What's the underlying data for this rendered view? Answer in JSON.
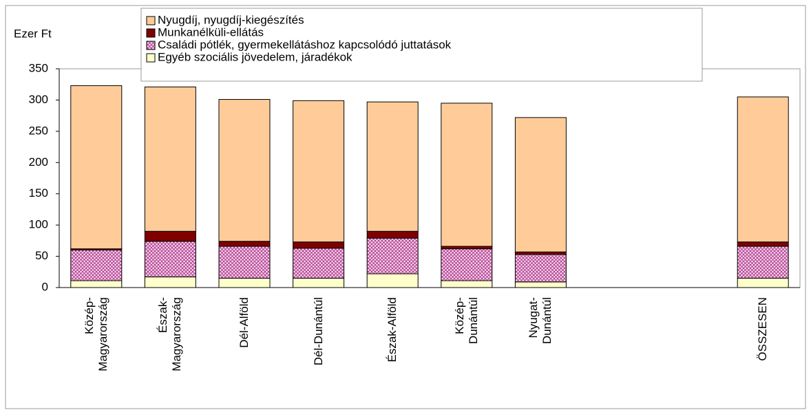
{
  "chart_data": {
    "type": "stacked_bar",
    "y_label": "Ezer Ft",
    "categories": [
      "Közép-\nMagyarország",
      "Észak-\nMagyarország",
      "Dél-Alföld",
      "Dél-Dunántúl",
      "Észak-Alföld",
      "Közép-\nDunántúl",
      "Nyugat-\nDunántúl",
      null,
      null,
      "ÖSSZESEN"
    ],
    "series": [
      {
        "name": "Egyéb szociális jövedelem, járadékok",
        "color": "#ffffcc",
        "values": [
          11,
          17,
          15,
          15,
          22,
          11,
          9,
          null,
          null,
          15
        ]
      },
      {
        "name": "Családi pótlék, gyermekellátáshoz kapcsolódó juttatások",
        "color": "#ffccff",
        "pattern": "crosshatch",
        "values": [
          49,
          57,
          51,
          48,
          57,
          51,
          44,
          null,
          null,
          51
        ]
      },
      {
        "name": "Munkanélküli-ellátás",
        "color": "#800000",
        "values": [
          2,
          16,
          8,
          10,
          11,
          4,
          4,
          null,
          null,
          7
        ]
      },
      {
        "name": "Nyugdíj, nyugdíj-kiegészítés",
        "color": "#ffcc99",
        "values": [
          261,
          231,
          227,
          226,
          207,
          229,
          215,
          null,
          null,
          232
        ]
      }
    ],
    "ylim": [
      0,
      350
    ],
    "yticks": [
      0,
      50,
      100,
      150,
      200,
      250,
      300,
      350
    ],
    "grid": false,
    "legend": "top"
  }
}
